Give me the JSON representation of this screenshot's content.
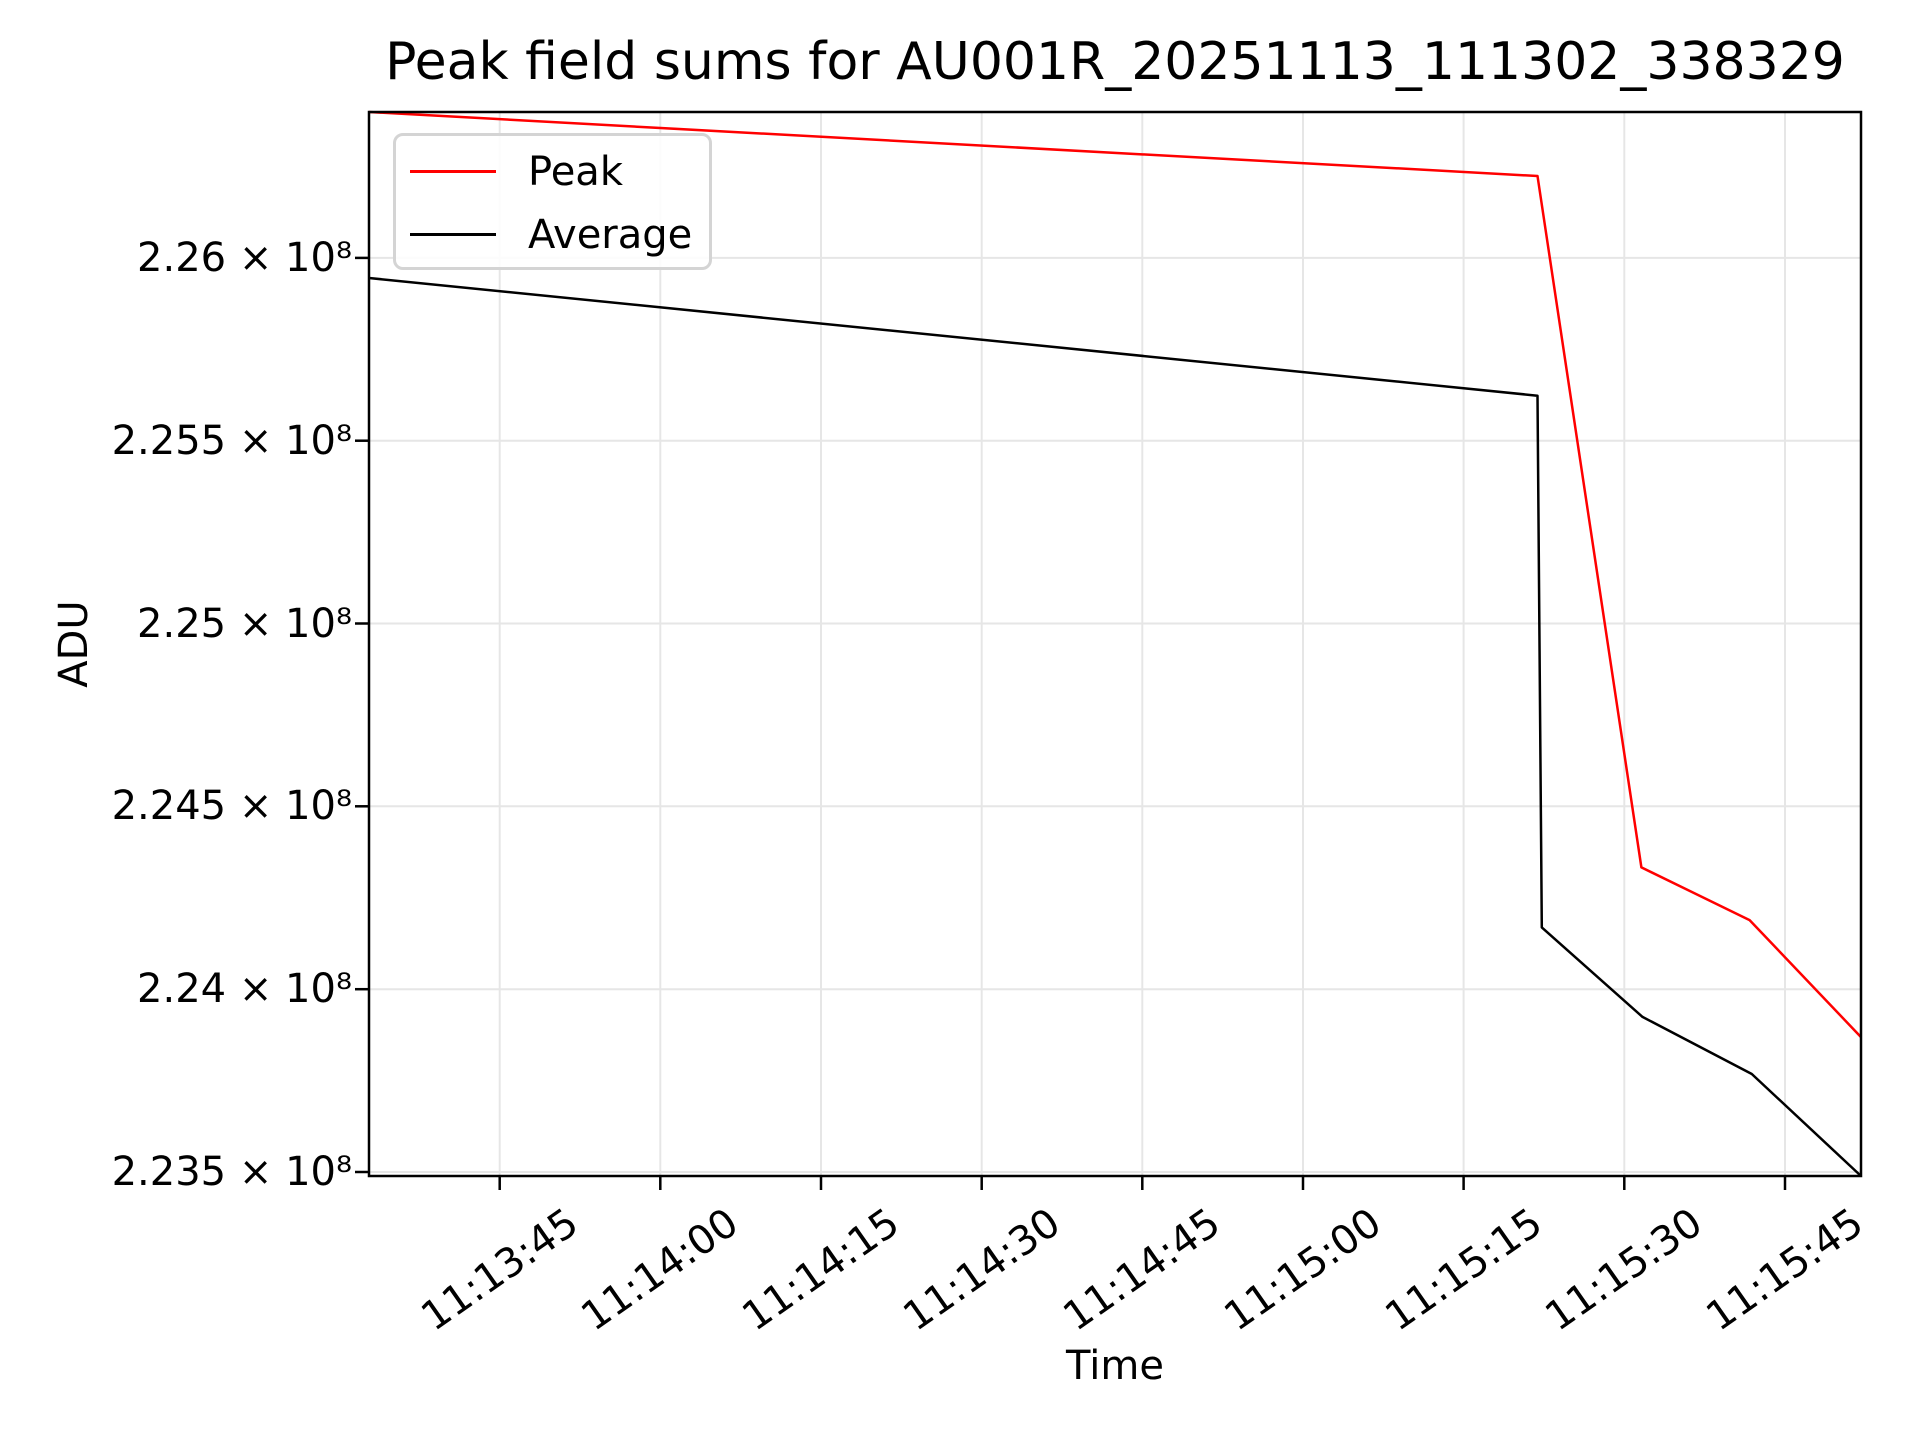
{
  "title": "Peak field sums for AU001R_20251113_111302_338329",
  "axes": {
    "xlabel": "Time",
    "ylabel": "ADU"
  },
  "legend": {
    "entries": [
      {
        "label": "Peak",
        "color": "#ff0000"
      },
      {
        "label": "Average",
        "color": "#000000"
      }
    ]
  },
  "chart_data": {
    "type": "line",
    "title": "Peak field sums for AU001R_20251113_111302_338329",
    "xlabel": "Time",
    "ylabel": "ADU",
    "grid": true,
    "grid_color": "#e6e6e6",
    "legend_position": "upper left",
    "x_axis": {
      "unit": "seconds relative to 11:13:45",
      "lim": [
        -12.2,
        127.1
      ],
      "ticks": [
        {
          "offset_s": 0,
          "label": "11:13:45"
        },
        {
          "offset_s": 15,
          "label": "11:14:00"
        },
        {
          "offset_s": 30,
          "label": "11:14:15"
        },
        {
          "offset_s": 45,
          "label": "11:14:30"
        },
        {
          "offset_s": 60,
          "label": "11:14:45"
        },
        {
          "offset_s": 75,
          "label": "11:15:00"
        },
        {
          "offset_s": 90,
          "label": "11:15:15"
        },
        {
          "offset_s": 105,
          "label": "11:15:30"
        },
        {
          "offset_s": 120,
          "label": "11:15:45"
        }
      ]
    },
    "y_axis": {
      "unit": "ADU, values in units of 10^8",
      "lim": [
        2.23489,
        2.26399
      ],
      "ticks": [
        {
          "value": 2.26,
          "label": "2.26 × 10⁸"
        },
        {
          "value": 2.255,
          "label": "2.255 × 10⁸"
        },
        {
          "value": 2.25,
          "label": "2.25 × 10⁸"
        },
        {
          "value": 2.245,
          "label": "2.245 × 10⁸"
        },
        {
          "value": 2.24,
          "label": "2.24 × 10⁸"
        },
        {
          "value": 2.235,
          "label": "2.235 × 10⁸"
        }
      ]
    },
    "series": [
      {
        "name": "Peak",
        "color": "#ff0000",
        "points": [
          {
            "time": "11:13:33",
            "offset_s": -12.2,
            "adu_e8": 2.26399
          },
          {
            "time": "11:15:22",
            "offset_s": 96.9,
            "adu_e8": 2.26224
          },
          {
            "time": "11:15:32",
            "offset_s": 106.6,
            "adu_e8": 2.24333
          },
          {
            "time": "11:15:42",
            "offset_s": 116.7,
            "adu_e8": 2.24189
          },
          {
            "time": "11:15:52",
            "offset_s": 127.1,
            "adu_e8": 2.23869
          }
        ]
      },
      {
        "name": "Average",
        "color": "#000000",
        "points": [
          {
            "time": "11:13:33",
            "offset_s": -12.2,
            "adu_e8": 2.25945
          },
          {
            "time": "11:15:22",
            "offset_s": 96.9,
            "adu_e8": 2.25623
          },
          {
            "time": "11:15:22",
            "offset_s": 97.3,
            "adu_e8": 2.24169
          },
          {
            "time": "11:15:32",
            "offset_s": 106.7,
            "adu_e8": 2.23924
          },
          {
            "time": "11:15:42",
            "offset_s": 116.9,
            "adu_e8": 2.23768
          },
          {
            "time": "11:15:52",
            "offset_s": 127.1,
            "adu_e8": 2.23489
          }
        ]
      }
    ]
  }
}
